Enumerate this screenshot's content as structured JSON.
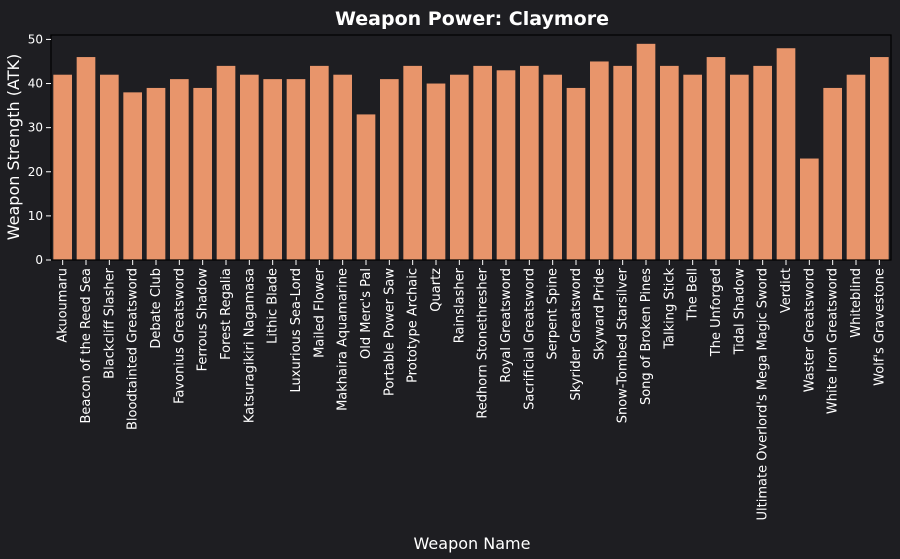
{
  "chart_data": {
    "type": "bar",
    "title": "Weapon Power: Claymore",
    "xlabel": "Weapon Name",
    "ylabel": "Weapon Strength (ATK)",
    "ylim": [
      0,
      51
    ],
    "yticks": [
      0,
      10,
      20,
      30,
      40,
      50
    ],
    "grid": false,
    "bar_color": "#e8956b",
    "background": "#1e1e22",
    "categories": [
      "Akuoumaru",
      "Beacon of the Reed Sea",
      "Blackcliff Slasher",
      "Bloodtainted Greatsword",
      "Debate Club",
      "Favonius Greatsword",
      "Ferrous Shadow",
      "Forest Regalia",
      "Katsuragikiri Nagamasa",
      "Lithic Blade",
      "Luxurious Sea-Lord",
      "Mailed Flower",
      "Makhaira Aquamarine",
      "Old Merc's Pal",
      "Portable Power Saw",
      "Prototype Archaic",
      "Quartz",
      "Rainslasher",
      "Redhorn Stonethresher",
      "Royal Greatsword",
      "Sacrificial Greatsword",
      "Serpent Spine",
      "Skyrider Greatsword",
      "Skyward Pride",
      "Snow-Tombed Starsilver",
      "Song of Broken Pines",
      "Talking Stick",
      "The Bell",
      "The Unforged",
      "Tidal Shadow",
      "Ultimate Overlord's Mega Magic Sword",
      "Verdict",
      "Waster Greatsword",
      "White Iron Greatsword",
      "Whiteblind",
      "Wolf's Gravestone"
    ],
    "values": [
      42,
      46,
      42,
      38,
      39,
      41,
      39,
      44,
      42,
      41,
      41,
      44,
      42,
      33,
      41,
      44,
      40,
      42,
      44,
      43,
      44,
      42,
      39,
      45,
      44,
      49,
      44,
      42,
      46,
      42,
      44,
      48,
      23,
      39,
      42,
      46
    ]
  }
}
